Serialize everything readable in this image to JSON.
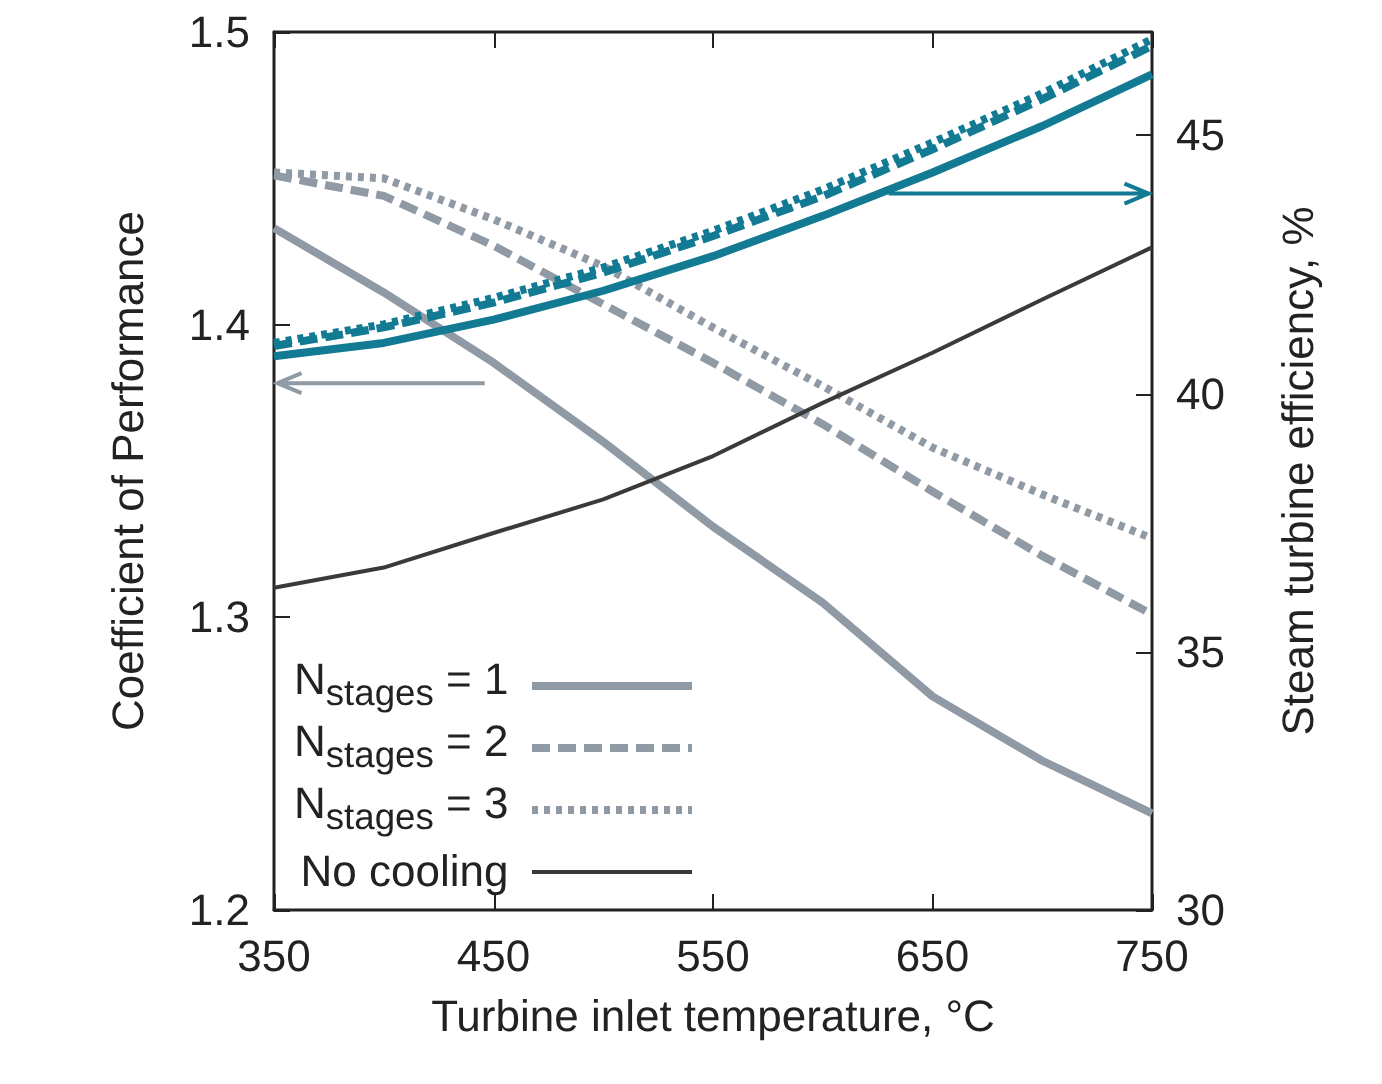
{
  "chart_data": {
    "type": "line",
    "xlabel": "Turbine inlet temperature, °C",
    "ylabel": "Coefficient of Performance",
    "y2label": "Steam turbine efficiency, %",
    "x": [
      350,
      400,
      450,
      500,
      550,
      600,
      650,
      700,
      750
    ],
    "series": [
      {
        "name": "N$_{stages}$ = 1",
        "color": "#8f9aa5",
        "line_style": "solid",
        "values": [
          1.433,
          1.411,
          1.387,
          1.36,
          1.331,
          1.305,
          1.273,
          1.251,
          1.233
        ]
      },
      {
        "name": "N$_{stages}$ = 2",
        "color": "#8f9aa5",
        "line_style": "dashed",
        "values": [
          1.451,
          1.444,
          1.427,
          1.407,
          1.387,
          1.366,
          1.343,
          1.321,
          1.301
        ]
      },
      {
        "name": "N$_{stages}$ = 3",
        "color": "#8f9aa5",
        "line_style": "dotted",
        "values": [
          1.452,
          1.45,
          1.436,
          1.42,
          1.399,
          1.379,
          1.358,
          1.342,
          1.327
        ]
      },
      {
        "name": "No cooling",
        "color": "#3a3a3a",
        "line_style": "solid",
        "axis": "y2",
        "values": [
          36.24,
          36.63,
          37.3,
          37.95,
          38.79,
          39.82,
          40.79,
          41.82,
          42.83
        ]
      },
      {
        "color": "#137a94",
        "line_style": "solid",
        "axis": "y2",
        "values": [
          40.72,
          40.98,
          41.43,
          41.99,
          42.66,
          43.44,
          44.28,
          45.18,
          46.18
        ]
      },
      {
        "color": "#137a94",
        "line_style": "dashed",
        "axis": "y2",
        "values": [
          40.92,
          41.28,
          41.76,
          42.34,
          43.05,
          43.82,
          44.73,
          45.7,
          46.73
        ]
      },
      {
        "color": "#137a94",
        "line_style": "dotted",
        "axis": "y2",
        "values": [
          40.98,
          41.34,
          41.85,
          42.44,
          43.15,
          43.95,
          44.86,
          45.81,
          46.86
        ]
      }
    ],
    "xlim": [
      350,
      750
    ],
    "xticks": [
      350,
      450,
      550,
      650,
      750
    ],
    "ylim": [
      1.2,
      1.5
    ],
    "yticks": [
      1.2,
      1.3,
      1.4,
      1.5
    ],
    "y2lim": [
      30,
      47
    ],
    "y2ticks": [
      30,
      35,
      40,
      45
    ],
    "grid": false,
    "legend": "bottom left",
    "marker": "none"
  }
}
